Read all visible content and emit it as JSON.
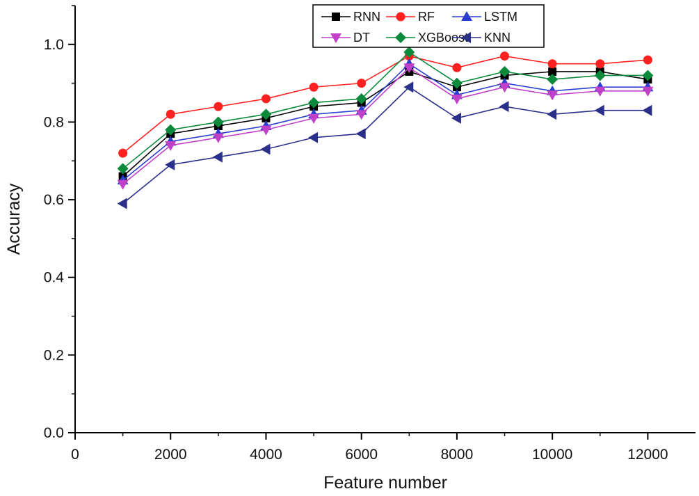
{
  "chart_data": {
    "type": "line",
    "title": "",
    "xlabel": "Feature number",
    "ylabel": "Accuracy",
    "xlim": [
      0,
      13000
    ],
    "ylim": [
      0,
      1.1
    ],
    "x_ticks": [
      0,
      2000,
      4000,
      6000,
      8000,
      10000,
      12000
    ],
    "x_tick_labels": [
      "0",
      "2000",
      "4000",
      "6000",
      "8000",
      "10000",
      "12000"
    ],
    "y_ticks": [
      0.0,
      0.2,
      0.4,
      0.6,
      0.8,
      1.0
    ],
    "y_tick_labels": [
      "0.0",
      "0.2",
      "0.4",
      "0.6",
      "0.8",
      "1.0"
    ],
    "x": [
      1000,
      2000,
      3000,
      4000,
      5000,
      6000,
      7000,
      8000,
      9000,
      10000,
      11000,
      12000
    ],
    "legend_position": "top-right",
    "series": [
      {
        "name": "RNN",
        "color": "#000000",
        "marker": "square",
        "values": [
          0.66,
          0.77,
          0.79,
          0.81,
          0.84,
          0.85,
          0.93,
          0.89,
          0.92,
          0.93,
          0.93,
          0.91
        ]
      },
      {
        "name": "RF",
        "color": "#ff2020",
        "marker": "circle",
        "values": [
          0.72,
          0.82,
          0.84,
          0.86,
          0.89,
          0.9,
          0.97,
          0.94,
          0.97,
          0.95,
          0.95,
          0.96
        ]
      },
      {
        "name": "LSTM",
        "color": "#2a3fd0",
        "marker": "triangle-up",
        "values": [
          0.65,
          0.75,
          0.77,
          0.79,
          0.82,
          0.83,
          0.95,
          0.87,
          0.9,
          0.88,
          0.89,
          0.89
        ]
      },
      {
        "name": "DT",
        "color": "#c040c8",
        "marker": "triangle-down",
        "values": [
          0.64,
          0.74,
          0.76,
          0.78,
          0.81,
          0.82,
          0.94,
          0.86,
          0.89,
          0.87,
          0.88,
          0.88
        ]
      },
      {
        "name": "XGBoost",
        "color": "#0a8a3a",
        "marker": "diamond",
        "values": [
          0.68,
          0.78,
          0.8,
          0.82,
          0.85,
          0.86,
          0.98,
          0.9,
          0.93,
          0.91,
          0.92,
          0.92
        ]
      },
      {
        "name": "KNN",
        "color": "#2a2f8a",
        "marker": "triangle-left",
        "values": [
          0.59,
          0.69,
          0.71,
          0.73,
          0.76,
          0.77,
          0.89,
          0.81,
          0.84,
          0.82,
          0.83,
          0.83
        ]
      }
    ]
  }
}
